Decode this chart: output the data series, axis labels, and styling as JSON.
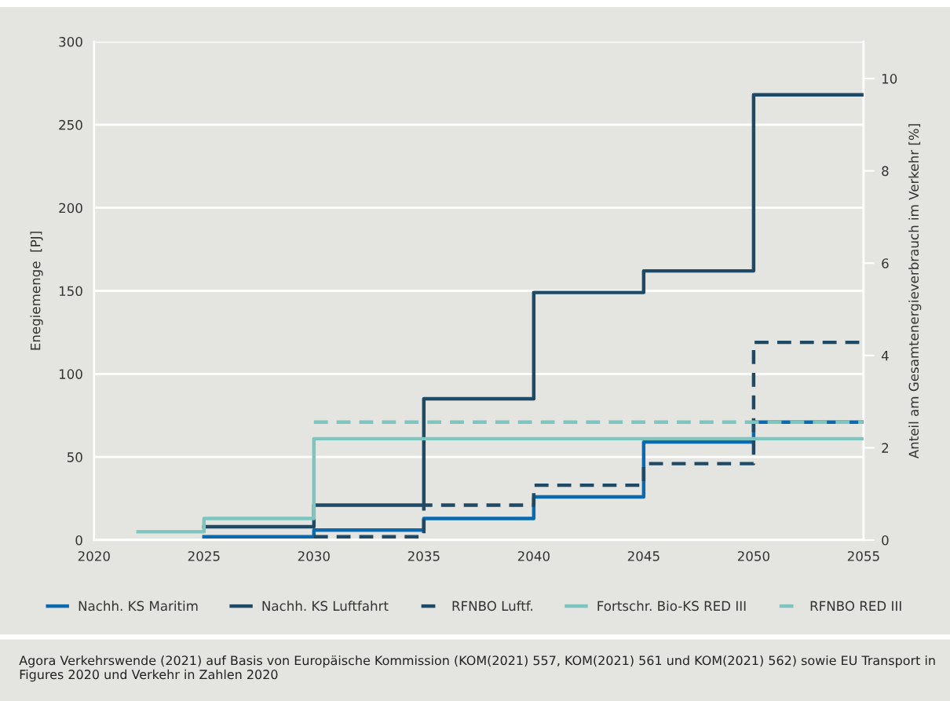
{
  "chart_data": {
    "type": "step",
    "ylabel": "Enegiemenge  [PJ]",
    "y2label": "Anteil am Gesamtenergieverbrauch im Verkehr [%]",
    "xlim": [
      2020,
      2055
    ],
    "xticks": [
      2020,
      2025,
      2030,
      2035,
      2040,
      2045,
      2050,
      2055
    ],
    "ylim": [
      0,
      300
    ],
    "yticks": [
      0,
      50,
      100,
      150,
      200,
      250,
      300
    ],
    "y2lim": [
      0,
      10.8
    ],
    "y2ticks": [
      0,
      2,
      4,
      6,
      8,
      10
    ],
    "grid": "y",
    "legend": "bottom",
    "series": [
      {
        "name": "Nachh. KS Maritim",
        "color": "#0a6aad",
        "line_style": "solid",
        "x": [
          2025,
          2030,
          2035,
          2040,
          2045,
          2050,
          2055
        ],
        "values": [
          2,
          6,
          13,
          26,
          59,
          71,
          71
        ]
      },
      {
        "name": "Nachh. KS Luftfahrt",
        "color": "#1e4a66",
        "line_style": "solid",
        "x": [
          2025,
          2030,
          2035,
          2040,
          2045,
          2050,
          2055
        ],
        "values": [
          8,
          21,
          85,
          149,
          162,
          268,
          268
        ]
      },
      {
        "name": "RFNBO Luftf.",
        "color": "#1e4a66",
        "line_style": "dashed",
        "x": [
          2030,
          2035,
          2040,
          2045,
          2050,
          2055
        ],
        "values": [
          2,
          21,
          33,
          46,
          119,
          119
        ]
      },
      {
        "name": "Fortschr. Bio-KS RED III",
        "color": "#7ec4bf",
        "line_style": "solid",
        "x": [
          2022,
          2025,
          2030,
          2055
        ],
        "values": [
          5,
          13,
          61,
          61
        ]
      },
      {
        "name": "RFNBO RED III",
        "color": "#7ec4bf",
        "line_style": "dashed",
        "x": [
          2030,
          2055
        ],
        "values": [
          71,
          71
        ]
      }
    ],
    "annotations": [
      "Agora Verkehrswende (2021) auf Basis von Europäische Kommission (KOM(2021) 557, KOM(2021) 561 und KOM(2021) 562) sowie EU Transport in Figures 2020 und Verkehr in Zahlen 2020"
    ]
  }
}
